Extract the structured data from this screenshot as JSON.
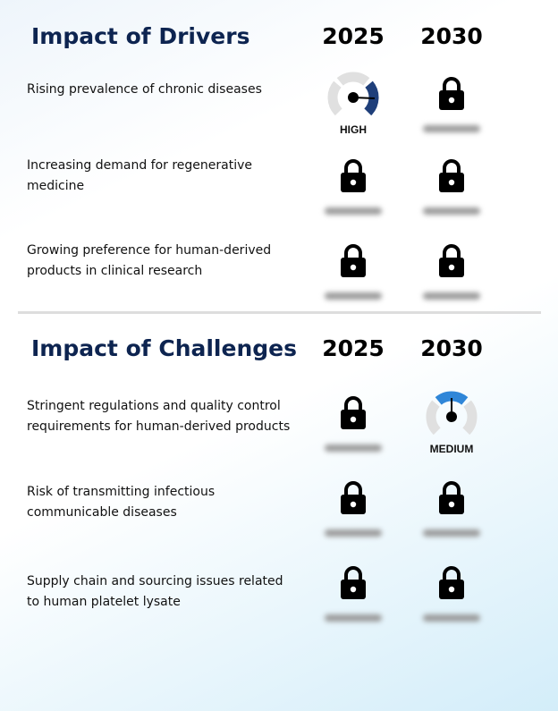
{
  "drivers": {
    "title": "Impact of Drivers",
    "years": [
      "2025",
      "2030"
    ],
    "rows": [
      {
        "label": "Rising prevalence of chronic diseases",
        "cells": [
          {
            "type": "gauge",
            "level": "HIGH"
          },
          {
            "type": "locked"
          }
        ]
      },
      {
        "label": "Increasing demand for regenerative medicine",
        "cells": [
          {
            "type": "locked"
          },
          {
            "type": "locked"
          }
        ]
      },
      {
        "label": "Growing preference for human-derived products in clinical research",
        "cells": [
          {
            "type": "locked"
          },
          {
            "type": "locked"
          }
        ]
      }
    ]
  },
  "challenges": {
    "title": "Impact of Challenges",
    "years": [
      "2025",
      "2030"
    ],
    "rows": [
      {
        "label": "Stringent regulations and quality control requirements for human-derived products",
        "cells": [
          {
            "type": "locked"
          },
          {
            "type": "gauge",
            "level": "MEDIUM"
          }
        ]
      },
      {
        "label": "Risk of transmitting infectious communicable diseases",
        "cells": [
          {
            "type": "locked"
          },
          {
            "type": "locked"
          }
        ]
      },
      {
        "label": "Supply chain and sourcing issues related to human platelet lysate",
        "cells": [
          {
            "type": "locked"
          },
          {
            "type": "locked"
          }
        ]
      }
    ]
  },
  "colors": {
    "title": "#0d2450",
    "high": "#1f3f7a",
    "medium": "#2f86d8",
    "gauge_bg": "#e0e0e0"
  }
}
